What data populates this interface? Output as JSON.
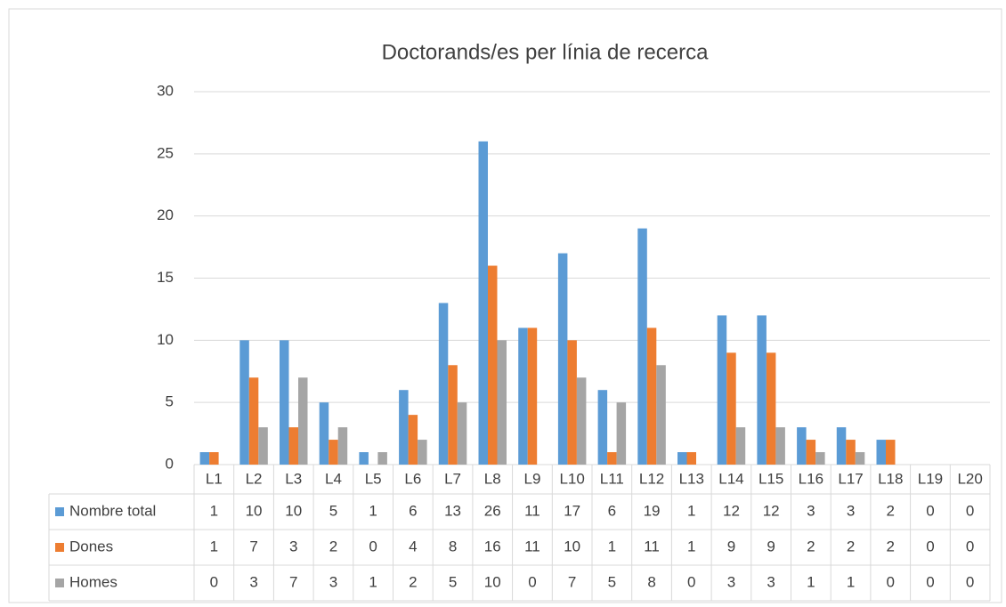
{
  "chart_data": {
    "type": "bar",
    "title": "Doctorands/es per línia de recerca",
    "categories": [
      "L1",
      "L2",
      "L3",
      "L4",
      "L5",
      "L6",
      "L7",
      "L8",
      "L9",
      "L10",
      "L11",
      "L12",
      "L13",
      "L14",
      "L15",
      "L16",
      "L17",
      "L18",
      "L19",
      "L20"
    ],
    "series": [
      {
        "name": "Nombre total",
        "color": "#5b9bd5",
        "values": [
          1,
          10,
          10,
          5,
          1,
          6,
          13,
          26,
          11,
          17,
          6,
          19,
          1,
          12,
          12,
          3,
          3,
          2,
          0,
          0
        ]
      },
      {
        "name": "Dones",
        "color": "#ed7d31",
        "values": [
          1,
          7,
          3,
          2,
          0,
          4,
          8,
          16,
          11,
          10,
          1,
          11,
          1,
          9,
          9,
          2,
          2,
          2,
          0,
          0
        ]
      },
      {
        "name": "Homes",
        "color": "#a5a5a5",
        "values": [
          0,
          3,
          7,
          3,
          1,
          2,
          5,
          10,
          0,
          7,
          5,
          8,
          0,
          3,
          3,
          1,
          1,
          0,
          0,
          0
        ]
      }
    ],
    "ylim": [
      0,
      30
    ],
    "yticks": [
      0,
      5,
      10,
      15,
      20,
      25,
      30
    ],
    "grid": true
  }
}
